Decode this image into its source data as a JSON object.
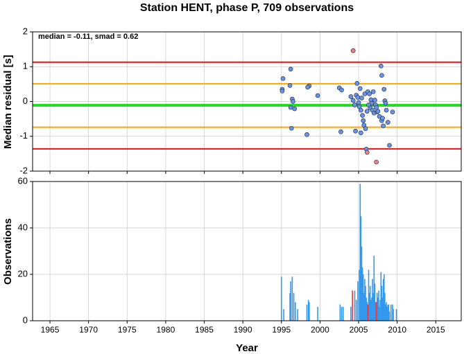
{
  "chart_data": [
    {
      "type": "scatter",
      "title": "Station HENT, phase P, 709 observations",
      "ylabel": "Median residual [s]",
      "annotation": "median = -0.11, smad = 0.62",
      "xlim": [
        1962.75,
        2018.3
      ],
      "xticks": [
        1965,
        1970,
        1975,
        1980,
        1985,
        1990,
        1995,
        2000,
        2005,
        2010,
        2015
      ],
      "ylim": [
        -2,
        2
      ],
      "yticks": [
        -2,
        -1,
        0,
        1,
        2
      ],
      "grid": true,
      "reference_lines": [
        {
          "value": 1.13,
          "color": "#ee1111"
        },
        {
          "value": 0.51,
          "color": "#ffa500"
        },
        {
          "value": -0.11,
          "color": "#22dd22"
        },
        {
          "value": -0.74,
          "color": "#ffa500"
        },
        {
          "value": -1.36,
          "color": "#ee1111"
        }
      ],
      "series": [
        {
          "color": "#6495ed",
          "x": [
            1995.1,
            1995.1,
            1995.2,
            1996.2,
            1996.1,
            1996.4,
            1996.5,
            1996.2,
            1996.7,
            1996.3,
            1998.6,
            1998.4,
            1998.3,
            1999.7,
            2002.5,
            2002.8,
            2002.7,
            2004.0,
            2004.3,
            2004.5,
            2004.7,
            2004.8,
            2004.9,
            2005.0,
            2005.1,
            2005.2,
            2005.3,
            2005.4,
            2005.5,
            2005.6,
            2005.7,
            2005.8,
            2005.9,
            2004.6,
            2005.3,
            2006.0,
            2006.1,
            2006.2,
            2006.4,
            2006.5,
            2006.6,
            2006.7,
            2006.8,
            2006.9,
            2007.0,
            2007.1,
            2007.2,
            2007.4,
            2007.5,
            2007.7,
            2007.9,
            2008.0,
            2008.0,
            2008.1,
            2008.2,
            2008.3,
            2008.4,
            2008.5,
            2008.6,
            2008.8,
            2009.0,
            2009.4,
            2006.3,
            2007.3
          ],
          "values": [
            0.35,
            0.3,
            0.66,
            0.93,
            0.46,
            0.07,
            0.0,
            -0.17,
            -0.21,
            -0.77,
            0.45,
            0.41,
            -0.95,
            0.17,
            0.39,
            0.33,
            -0.87,
            0.14,
            0.03,
            -0.1,
            0.18,
            0.52,
            0.12,
            -0.03,
            -0.15,
            0.37,
            -0.25,
            0.1,
            -0.4,
            -0.55,
            -0.68,
            0.22,
            -0.78,
            -0.85,
            -0.9,
            -1.37,
            -0.28,
            0.28,
            0.22,
            -0.18,
            0.05,
            -0.05,
            -0.25,
            0.28,
            -0.33,
            0.04,
            -0.1,
            -0.3,
            -0.28,
            -0.43,
            1.02,
            0.75,
            -0.55,
            -0.48,
            -0.7,
            0.35,
            0.02,
            -0.05,
            -0.25,
            -0.6,
            -1.26,
            -0.3,
            -0.1,
            -0.17
          ]
        },
        {
          "color": "#f08080",
          "x": [
            2004.3,
            2006.1,
            2007.3
          ],
          "values": [
            1.46,
            -1.46,
            -1.74
          ]
        }
      ]
    },
    {
      "type": "bar",
      "xlabel": "Year",
      "ylabel": "Observations",
      "xlim": [
        1962.75,
        2018.3
      ],
      "xticks": [
        1965,
        1970,
        1975,
        1980,
        1985,
        1990,
        1995,
        2000,
        2005,
        2010,
        2015
      ],
      "ylim": [
        0,
        60
      ],
      "yticks": [
        0,
        20,
        40,
        60
      ],
      "grid": true,
      "series": [
        {
          "color": "#3399ee",
          "x": [
            1995.0,
            1995.3,
            1996.1,
            1996.2,
            1996.4,
            1996.6,
            1996.8,
            1997.1,
            1998.3,
            1998.5,
            1998.6,
            1999.7,
            2002.6,
            2002.8,
            2003.0,
            2004.0,
            2004.5,
            2004.7,
            2004.9,
            2005.1,
            2005.2,
            2005.3,
            2005.4,
            2005.5,
            2005.6,
            2005.7,
            2005.8,
            2005.9,
            2006.0,
            2006.1,
            2006.3,
            2006.4,
            2006.5,
            2006.6,
            2006.7,
            2006.8,
            2006.9,
            2007.0,
            2007.1,
            2007.2,
            2007.4,
            2007.5,
            2007.6,
            2007.7,
            2007.8,
            2007.9,
            2008.0,
            2008.1,
            2008.2,
            2008.3,
            2008.4,
            2008.5,
            2008.6,
            2008.7,
            2008.8,
            2008.9,
            2009.0,
            2009.2,
            2009.4,
            2009.5,
            2009.9
          ],
          "values": [
            19,
            5,
            12,
            17,
            19,
            12,
            8,
            5,
            7,
            9,
            8,
            6,
            7,
            6,
            6,
            6,
            13,
            9,
            17,
            22,
            59,
            45,
            32,
            23,
            20,
            12,
            18,
            15,
            10,
            8,
            22,
            12,
            15,
            9,
            10,
            18,
            12,
            28,
            16,
            8,
            12,
            10,
            13,
            6,
            9,
            21,
            15,
            10,
            18,
            20,
            12,
            7,
            8,
            6,
            7,
            7,
            4,
            7,
            7,
            5,
            5
          ]
        },
        {
          "color": "#ee3333",
          "x": [
            2004.2,
            2006.2,
            2007.3
          ],
          "values": [
            13,
            7,
            8
          ]
        }
      ]
    }
  ]
}
